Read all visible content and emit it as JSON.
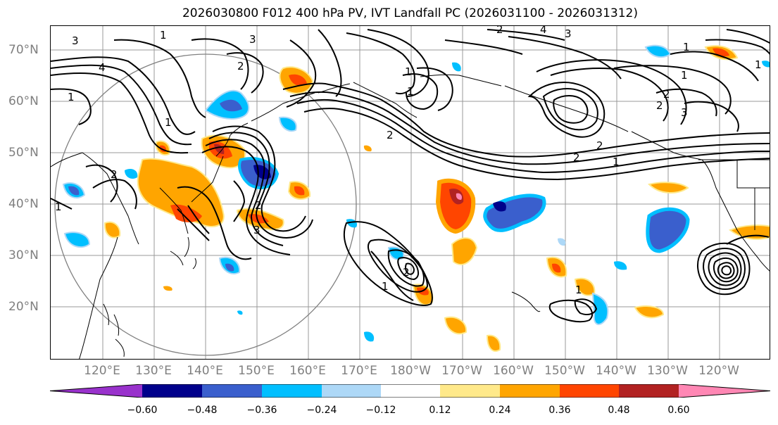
{
  "title": "2026030800 F012 400 hPa PV, IVT Landfall PC (2026031100 - 2026031312)",
  "lat_labels": [
    "70°N",
    "60°N",
    "50°N",
    "40°N",
    "30°N",
    "20°N"
  ],
  "lon_labels": [
    "120°E",
    "130°E",
    "140°E",
    "150°E",
    "160°E",
    "170°E",
    "180°W",
    "170°W",
    "160°W",
    "150°W",
    "140°W",
    "130°W",
    "120°W"
  ],
  "colorbar": {
    "ticks": [
      "−0.60",
      "−0.48",
      "−0.36",
      "−0.24",
      "−0.12",
      "0.12",
      "0.24",
      "0.36",
      "0.48",
      "0.60"
    ],
    "colors": [
      "#9932cc",
      "#00008b",
      "#3a5fcd",
      "#00bfff",
      "#add8f7",
      "#ffffff",
      "#ffe98a",
      "#ffa500",
      "#ff4500",
      "#b22222",
      "#ff87b4"
    ]
  },
  "contour_labels": [
    "3",
    "4",
    "1",
    "1",
    "2",
    "3",
    "2",
    "1",
    "1",
    "2",
    "3",
    "1",
    "2",
    "4",
    "3",
    "1",
    "1",
    "2",
    "2",
    "3",
    "2",
    "1",
    "2",
    "1",
    "2",
    "1",
    "2",
    "1",
    "1"
  ],
  "palette": {
    "axis_text": "#7f7f7f",
    "grid": "#999999",
    "contour": "#000000"
  }
}
